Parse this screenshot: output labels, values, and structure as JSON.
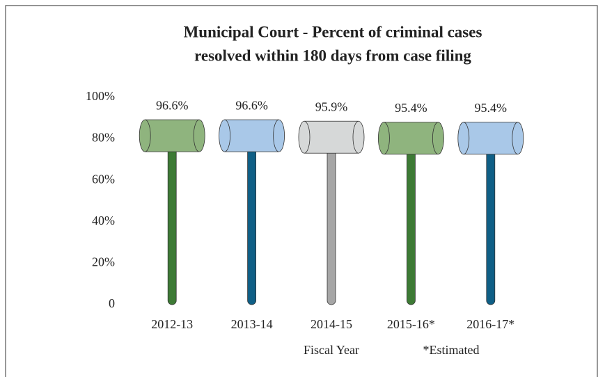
{
  "chart_data": {
    "type": "gavel",
    "title": [
      "Municipal Court - Percent of criminal cases",
      "resolved within 180 days from case filing"
    ],
    "categories": [
      "2012-13",
      "2013-14",
      "2014-15",
      "2015-16*",
      "2016-17*"
    ],
    "values": [
      96.6,
      96.6,
      95.9,
      95.4,
      95.4
    ],
    "value_labels": [
      "96.6%",
      "96.6%",
      "95.9%",
      "95.4%",
      "95.4%"
    ],
    "head_colors": [
      "#8fb47e",
      "#a9c8e8",
      "#d6d8d8",
      "#8fb47e",
      "#a9c8e8"
    ],
    "handle_colors": [
      "#3d7a35",
      "#0f5f86",
      "#a6a6a6",
      "#3d7a35",
      "#0f5f86"
    ],
    "ylim": [
      0,
      100
    ],
    "yticks": [
      0,
      {
        "value": 20,
        "label": "20%"
      },
      {
        "value": 40,
        "label": "40%"
      },
      {
        "value": 60,
        "label": "60%"
      },
      {
        "value": 80,
        "label": "80%"
      },
      {
        "value": 100,
        "label": "100%"
      }
    ],
    "xlabel": "Fiscal Year",
    "annotation": "*Estimated"
  }
}
